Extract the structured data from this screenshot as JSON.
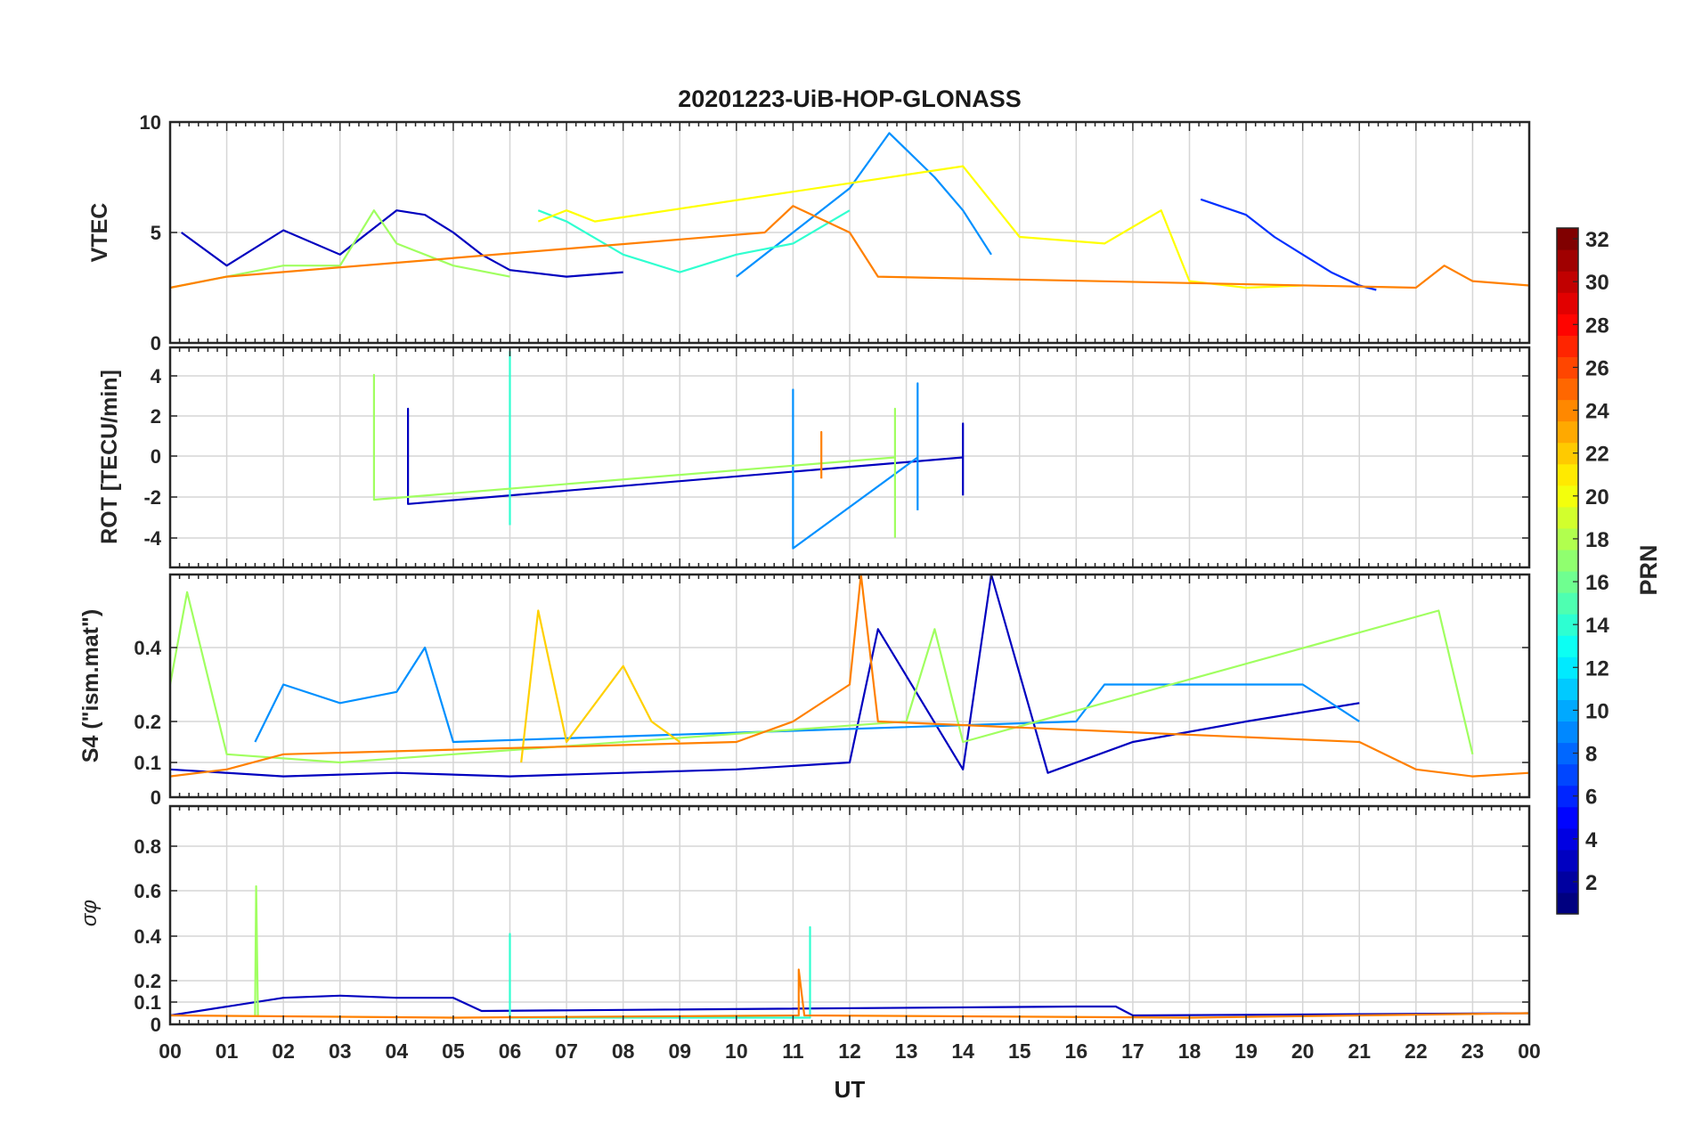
{
  "figure": {
    "title": "20201223-UiB-HOP-GLONASS",
    "xlabel": "UT",
    "x_tick_labels": [
      "00",
      "01",
      "02",
      "03",
      "04",
      "05",
      "06",
      "07",
      "08",
      "09",
      "10",
      "11",
      "12",
      "13",
      "14",
      "15",
      "16",
      "17",
      "18",
      "19",
      "20",
      "21",
      "22",
      "23",
      "00"
    ],
    "colorbar": {
      "label": "PRN",
      "min": 1,
      "max": 32,
      "tick_labels": [
        "2",
        "4",
        "6",
        "8",
        "10",
        "12",
        "14",
        "16",
        "18",
        "20",
        "22",
        "24",
        "26",
        "28",
        "30",
        "32"
      ],
      "colormap": "jet"
    }
  },
  "chart_data": [
    {
      "type": "line",
      "ylabel": "VTEC",
      "ylim": [
        0,
        10
      ],
      "y_ticks": [
        0,
        5,
        10
      ],
      "y_tick_labels": [
        "0",
        "5",
        "10"
      ],
      "xlim": [
        0,
        24
      ],
      "grid": true,
      "series": [
        {
          "prn": 3,
          "color": "#0000bf",
          "x": [
            0.2,
            1,
            2,
            3,
            3.5,
            4,
            4.5,
            5,
            5.5,
            6,
            7,
            8
          ],
          "y": [
            5.0,
            3.5,
            5.1,
            4.0,
            5.0,
            6.0,
            5.8,
            5.0,
            4.0,
            3.3,
            3.0,
            3.2
          ]
        },
        {
          "prn": 5,
          "color": "#0030ff",
          "x": [
            18.2,
            19,
            19.5,
            20,
            20.5,
            21,
            21.3
          ],
          "y": [
            6.5,
            5.8,
            4.8,
            4.0,
            3.2,
            2.6,
            2.4
          ]
        },
        {
          "prn": 9,
          "color": "#0090ff",
          "x": [
            10,
            11,
            12,
            12.7,
            13.5,
            14,
            14.5
          ],
          "y": [
            3.0,
            5.0,
            7.0,
            9.5,
            7.5,
            6.0,
            4.0
          ]
        },
        {
          "prn": 13,
          "color": "#30ffd0",
          "x": [
            6.5,
            7,
            8,
            9,
            10,
            11,
            12
          ],
          "y": [
            6.0,
            5.5,
            4.0,
            3.2,
            4.0,
            4.5,
            6.0
          ]
        },
        {
          "prn": 17,
          "color": "#a0ff60",
          "x": [
            0,
            1,
            2,
            3,
            3.6,
            4,
            5,
            6
          ],
          "y": [
            2.5,
            3.0,
            3.5,
            3.5,
            6.0,
            4.5,
            3.5,
            3.0
          ]
        },
        {
          "prn": 20,
          "color": "#ffff00",
          "x": [
            6.5,
            7,
            7.5,
            14,
            15,
            16.5,
            17.5,
            18,
            19,
            20
          ],
          "y": [
            5.5,
            6.0,
            5.5,
            8.0,
            4.8,
            4.5,
            6.0,
            2.8,
            2.5,
            2.6
          ]
        },
        {
          "prn": 23,
          "color": "#ff8000",
          "x": [
            0,
            1,
            10.5,
            11,
            12,
            12.5,
            22,
            22.5,
            23,
            24
          ],
          "y": [
            2.5,
            3.0,
            5.0,
            6.2,
            5.0,
            3.0,
            2.5,
            3.5,
            2.8,
            2.6
          ]
        }
      ]
    },
    {
      "type": "line",
      "ylabel": "ROT [TECU/min]",
      "ylim": [
        -5.2,
        5.2
      ],
      "y_ticks": [
        -4,
        -2,
        0,
        2,
        4
      ],
      "y_tick_labels": [
        "-4",
        "-2",
        "0",
        "2",
        "4"
      ],
      "xlim": [
        0,
        24
      ],
      "grid": true,
      "series": [
        {
          "prn": 3,
          "color": "#0000bf",
          "x": [
            4.2,
            4.2,
            4.2,
            14.0,
            14.0,
            14.0
          ],
          "y": [
            0,
            2.3,
            -2.2,
            0,
            1.6,
            -1.8
          ]
        },
        {
          "prn": 9,
          "color": "#0090ff",
          "x": [
            11.0,
            11.0,
            11.0,
            13.2,
            13.2,
            13.2
          ],
          "y": [
            0,
            3.2,
            -4.3,
            0,
            3.5,
            -2.5
          ]
        },
        {
          "prn": 13,
          "color": "#30ffd0",
          "x": [
            6.0,
            6.0,
            6.0
          ],
          "y": [
            0,
            5.0,
            -3.2
          ]
        },
        {
          "prn": 17,
          "color": "#a0ff60",
          "x": [
            3.6,
            3.6,
            3.6,
            12.8,
            12.8,
            12.8
          ],
          "y": [
            0,
            3.9,
            -2.0,
            0,
            2.3,
            -3.8
          ]
        },
        {
          "prn": 23,
          "color": "#ff8000",
          "x": [
            11.5,
            11.5,
            11.5
          ],
          "y": [
            0,
            1.2,
            -1.0
          ]
        }
      ]
    },
    {
      "type": "line",
      "ylabel": "S4 (\"ism.mat\")",
      "yscale": "non-linear",
      "ylim": [
        0,
        0.6
      ],
      "y_ticks": [
        0,
        0.1,
        0.2,
        0.4
      ],
      "y_tick_labels": [
        "0",
        "0.1",
        "0.2",
        "0.4"
      ],
      "xlim": [
        0,
        24
      ],
      "grid": true,
      "series": [
        {
          "prn": 3,
          "color": "#0000bf",
          "x": [
            0,
            2,
            4,
            6,
            8,
            10,
            12,
            12.5,
            14,
            14.5,
            15.5,
            17,
            19,
            21
          ],
          "y": [
            0.08,
            0.06,
            0.07,
            0.06,
            0.07,
            0.08,
            0.1,
            0.45,
            0.08,
            0.6,
            0.07,
            0.15,
            0.2,
            0.25
          ]
        },
        {
          "prn": 9,
          "color": "#0090ff",
          "x": [
            1.5,
            2,
            3,
            4,
            4.5,
            5,
            16,
            16.5,
            20,
            21
          ],
          "y": [
            0.15,
            0.3,
            0.25,
            0.28,
            0.4,
            0.15,
            0.2,
            0.3,
            0.3,
            0.2
          ]
        },
        {
          "prn": 17,
          "color": "#a0ff60",
          "x": [
            0,
            0.3,
            1,
            3,
            13,
            13.5,
            14,
            22.4,
            23
          ],
          "y": [
            0.3,
            0.55,
            0.12,
            0.1,
            0.2,
            0.45,
            0.15,
            0.5,
            0.12
          ]
        },
        {
          "prn": 21,
          "color": "#ffd000",
          "x": [
            6.2,
            6.5,
            7,
            8,
            8.5,
            9
          ],
          "y": [
            0.1,
            0.5,
            0.15,
            0.35,
            0.2,
            0.15
          ]
        },
        {
          "prn": 23,
          "color": "#ff8000",
          "x": [
            0,
            1,
            2,
            10,
            11,
            12,
            12.2,
            12.5,
            21,
            22,
            23,
            24
          ],
          "y": [
            0.06,
            0.08,
            0.12,
            0.15,
            0.2,
            0.3,
            0.6,
            0.2,
            0.15,
            0.08,
            0.06,
            0.07
          ]
        }
      ]
    },
    {
      "type": "line",
      "ylabel": "σφ",
      "yscale": "non-linear",
      "ylim": [
        0,
        1
      ],
      "y_ticks": [
        0,
        0.1,
        0.2,
        0.4,
        0.6,
        0.8
      ],
      "y_tick_labels": [
        "0",
        "0.1",
        "0.2",
        "0.4",
        "0.6",
        "0.8"
      ],
      "xlim": [
        0,
        24
      ],
      "grid": true,
      "series": [
        {
          "prn": 3,
          "color": "#0000bf",
          "x": [
            0,
            2,
            3,
            4,
            5,
            5.5,
            16,
            16.7,
            17,
            24
          ],
          "y": [
            0.04,
            0.12,
            0.13,
            0.12,
            0.12,
            0.06,
            0.08,
            0.08,
            0.04,
            0.05
          ]
        },
        {
          "prn": 13,
          "color": "#30ffd0",
          "x": [
            6.0,
            6.0,
            6.0,
            11.3,
            11.3,
            11.3
          ],
          "y": [
            0.03,
            0.41,
            0.03,
            0.03,
            0.44,
            0.03
          ]
        },
        {
          "prn": 17,
          "color": "#a0ff60",
          "x": [
            1.5,
            1.52,
            1.55
          ],
          "y": [
            0.04,
            0.62,
            0.04
          ]
        },
        {
          "prn": 23,
          "color": "#ff8000",
          "x": [
            0,
            5,
            11.1,
            11.1,
            11.2,
            18,
            24
          ],
          "y": [
            0.04,
            0.03,
            0.04,
            0.25,
            0.04,
            0.03,
            0.05
          ]
        }
      ]
    }
  ]
}
